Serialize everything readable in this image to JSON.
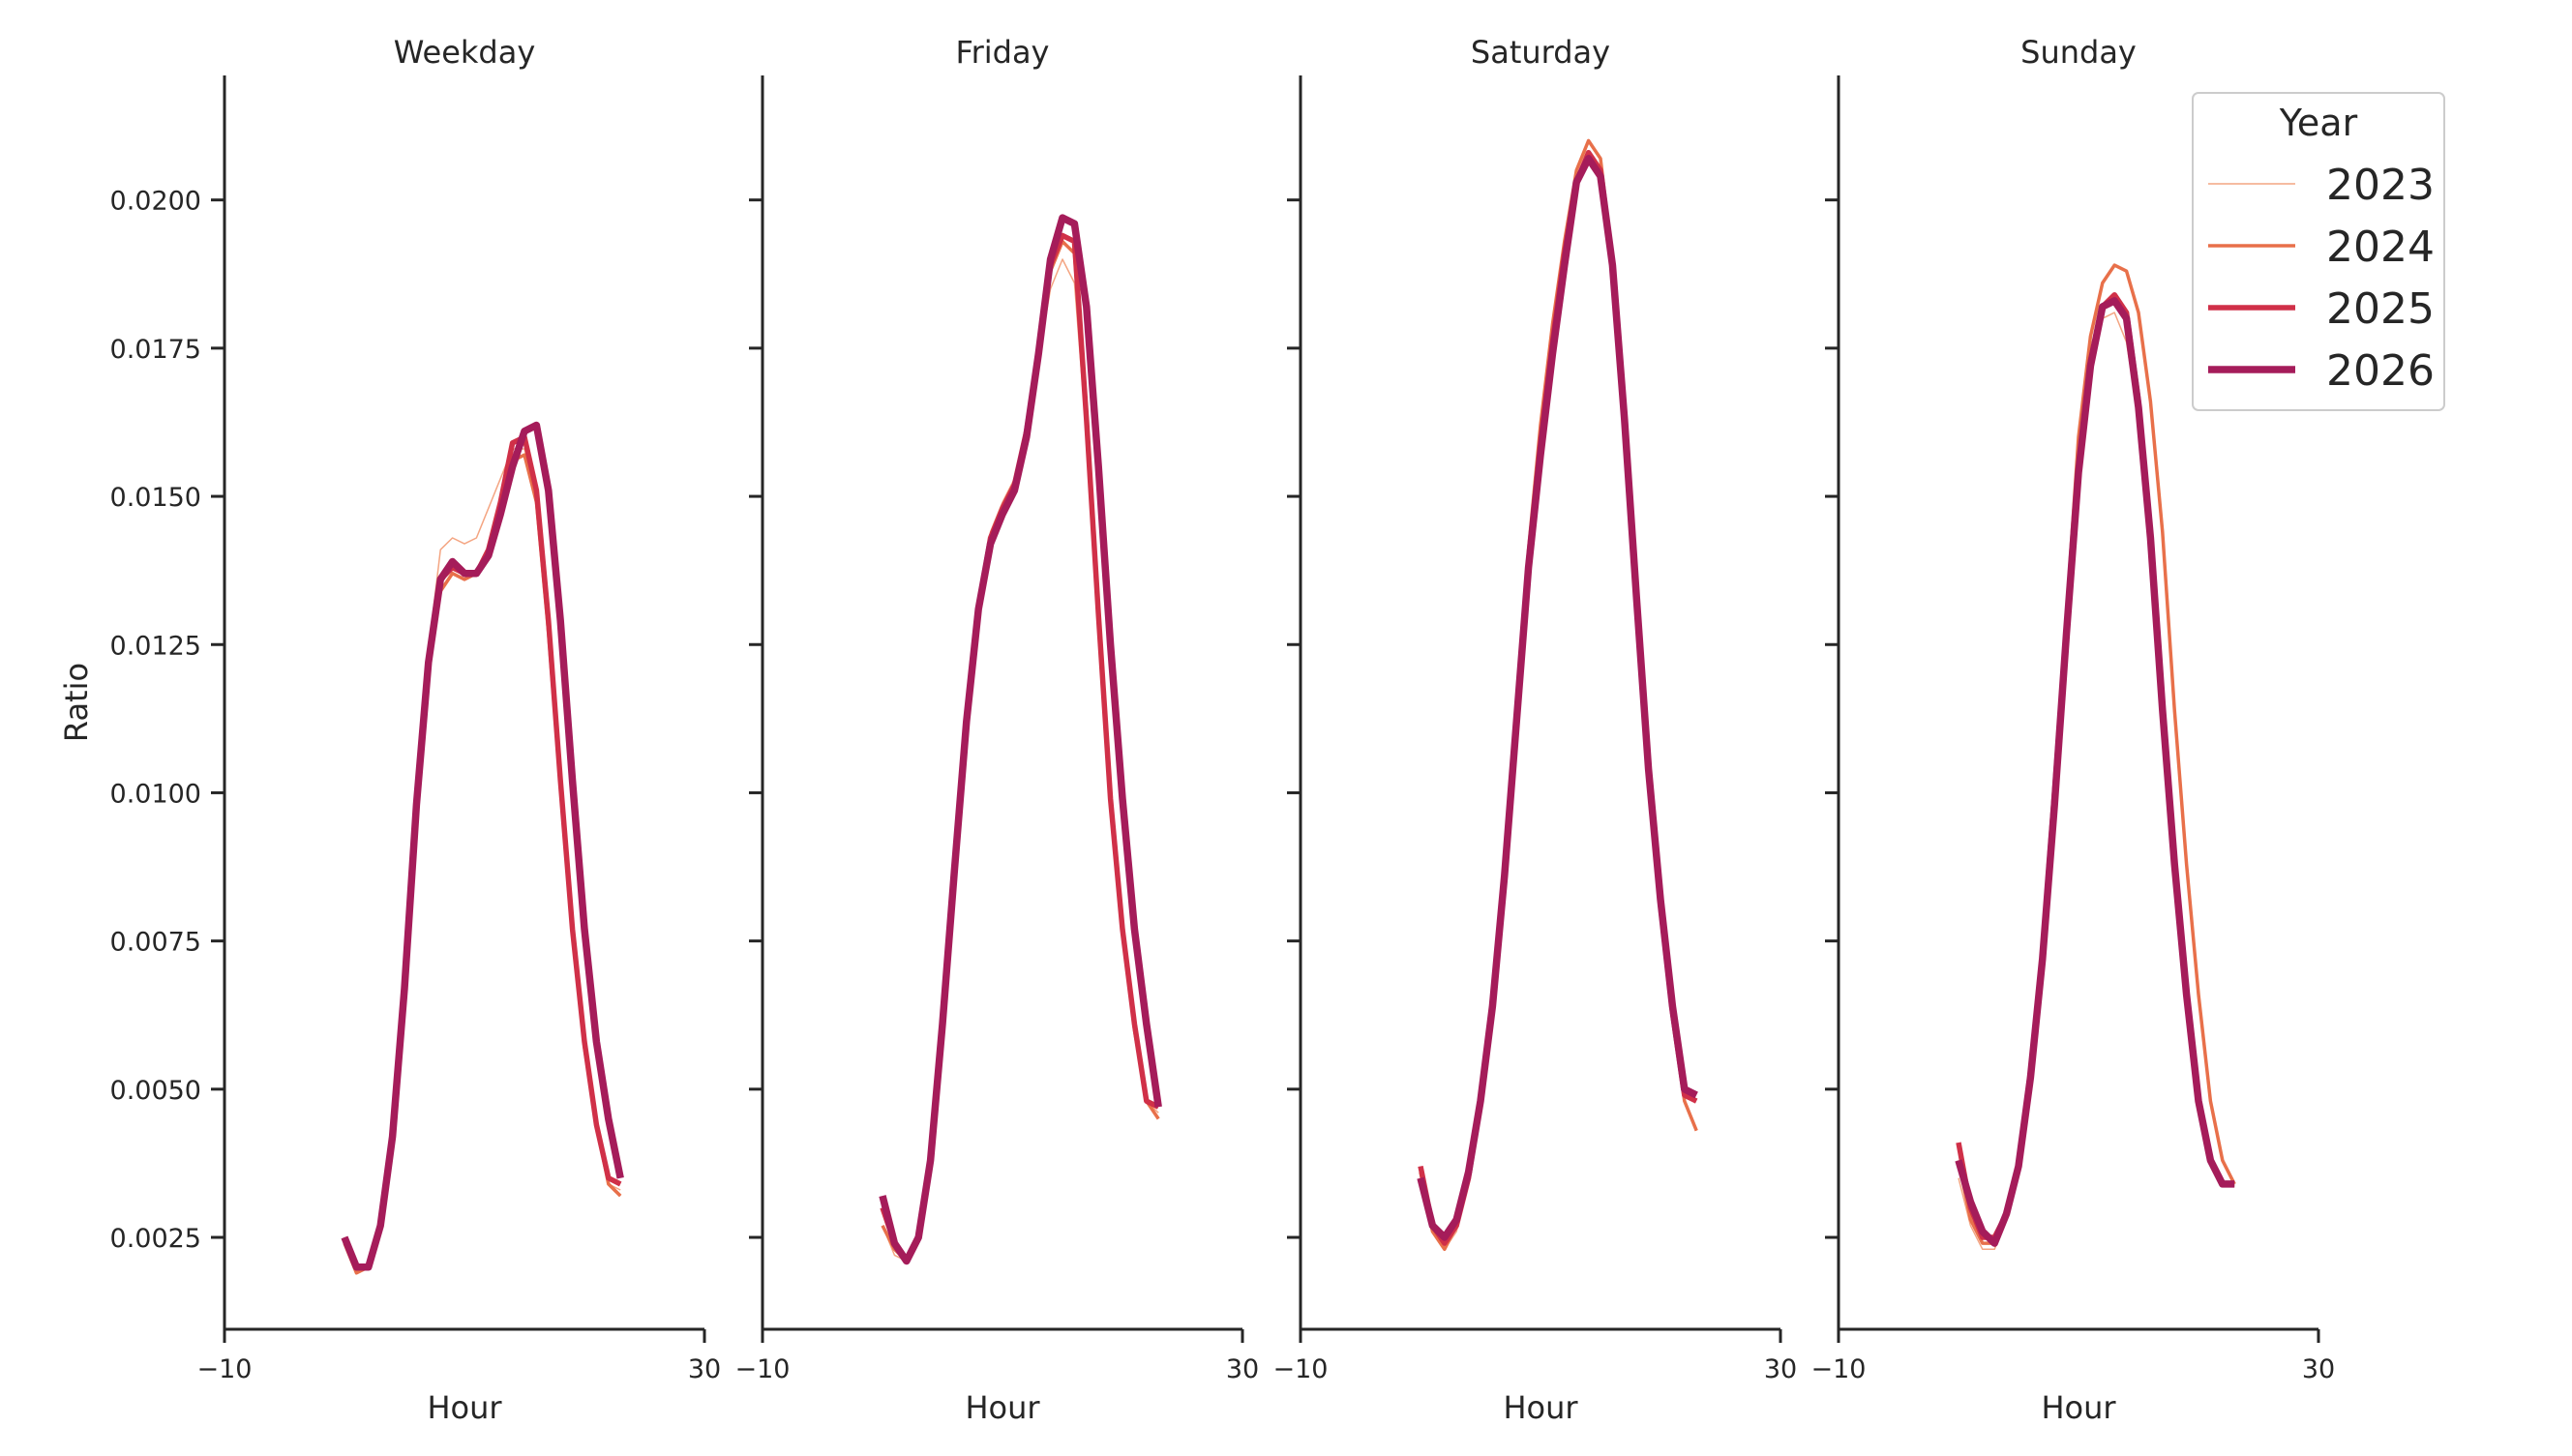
{
  "chart_data": {
    "type": "line",
    "ylabel": "Ratio",
    "xlabel": "Hour",
    "xlim": [
      -10,
      30
    ],
    "ylim": [
      0.00095,
      0.0221
    ],
    "x_ticks": [
      -10,
      30
    ],
    "x_tick_labels": [
      "−10",
      "30"
    ],
    "y_ticks": [
      0.0025,
      0.005,
      0.0075,
      0.01,
      0.0125,
      0.015,
      0.0175,
      0.02
    ],
    "y_tick_labels": [
      "0.0025",
      "0.0050",
      "0.0075",
      "0.0100",
      "0.0125",
      "0.0150",
      "0.0175",
      "0.0200"
    ],
    "grid": false,
    "legend": {
      "title": "Year",
      "placement": "upper-right",
      "entries": [
        "2023",
        "2024",
        "2025",
        "2026"
      ]
    },
    "series_style": {
      "2023": {
        "color": "#f4a582",
        "width": 1.5
      },
      "2024": {
        "color": "#e8704a",
        "width": 3.5
      },
      "2025": {
        "color": "#d03048",
        "width": 5.5
      },
      "2026": {
        "color": "#a51c5a",
        "width": 7.5
      }
    },
    "panels": [
      {
        "title": "Weekday",
        "x": [
          0,
          1,
          2,
          3,
          4,
          5,
          6,
          7,
          8,
          9,
          10,
          11,
          12,
          13,
          14,
          15,
          16,
          17,
          18,
          19,
          20,
          21,
          22,
          23
        ],
        "series": [
          {
            "name": "2023",
            "values": [
              0.0024,
              0.0019,
              0.002,
              0.0026,
              0.0041,
              0.0067,
              0.0098,
              0.0124,
              0.0141,
              0.0143,
              0.0142,
              0.0143,
              0.0148,
              0.0153,
              0.0158,
              0.0158,
              0.015,
              0.0128,
              0.0101,
              0.0077,
              0.0057,
              0.0044,
              0.0034,
              0.0033
            ]
          },
          {
            "name": "2024",
            "values": [
              0.0024,
              0.0019,
              0.002,
              0.0027,
              0.0041,
              0.0067,
              0.0098,
              0.0122,
              0.0134,
              0.0137,
              0.0136,
              0.0137,
              0.0141,
              0.0149,
              0.0156,
              0.0157,
              0.0149,
              0.0127,
              0.0101,
              0.0077,
              0.0057,
              0.0044,
              0.0034,
              0.0032
            ]
          },
          {
            "name": "2025",
            "values": [
              0.0025,
              0.002,
              0.002,
              0.0027,
              0.0042,
              0.0067,
              0.0098,
              0.0122,
              0.0136,
              0.0138,
              0.0137,
              0.0137,
              0.0141,
              0.0149,
              0.0159,
              0.016,
              0.0151,
              0.0129,
              0.0102,
              0.0077,
              0.0058,
              0.0044,
              0.0035,
              0.0034
            ]
          },
          {
            "name": "2026",
            "values": [
              0.0025,
              0.002,
              0.002,
              0.0027,
              0.0042,
              0.0067,
              0.0098,
              0.0122,
              0.0136,
              0.0139,
              0.0137,
              0.0137,
              0.014,
              0.0147,
              0.0155,
              0.0161,
              0.0162,
              0.0151,
              0.0129,
              0.0102,
              0.0077,
              0.0058,
              0.0045,
              0.0035
            ]
          }
        ]
      },
      {
        "title": "Friday",
        "x": [
          0,
          1,
          2,
          3,
          4,
          5,
          6,
          7,
          8,
          9,
          10,
          11,
          12,
          13,
          14,
          15,
          16,
          17,
          18,
          19,
          20,
          21,
          22,
          23
        ],
        "series": [
          {
            "name": "2023",
            "values": [
              0.0027,
              0.0022,
              0.0021,
              0.0025,
              0.0038,
              0.0061,
              0.0087,
              0.0112,
              0.0131,
              0.0144,
              0.0149,
              0.0153,
              0.0161,
              0.0173,
              0.0185,
              0.019,
              0.0186,
              0.016,
              0.0128,
              0.0099,
              0.0077,
              0.006,
              0.0048,
              0.0046
            ]
          },
          {
            "name": "2024",
            "values": [
              0.0027,
              0.0023,
              0.0021,
              0.0025,
              0.0038,
              0.0061,
              0.0087,
              0.0112,
              0.0131,
              0.0143,
              0.0148,
              0.0152,
              0.0161,
              0.0174,
              0.0188,
              0.0193,
              0.0191,
              0.0162,
              0.0129,
              0.0099,
              0.0077,
              0.006,
              0.0048,
              0.0045
            ]
          },
          {
            "name": "2025",
            "values": [
              0.003,
              0.0024,
              0.0021,
              0.0025,
              0.0038,
              0.0061,
              0.0087,
              0.0112,
              0.0131,
              0.0143,
              0.0148,
              0.0152,
              0.0161,
              0.0174,
              0.0189,
              0.0194,
              0.0193,
              0.0163,
              0.013,
              0.0099,
              0.0077,
              0.0061,
              0.0048,
              0.0047
            ]
          },
          {
            "name": "2026",
            "values": [
              0.0032,
              0.0024,
              0.0021,
              0.0025,
              0.0038,
              0.0061,
              0.0087,
              0.0112,
              0.0131,
              0.0142,
              0.0147,
              0.0151,
              0.016,
              0.0174,
              0.019,
              0.0197,
              0.0196,
              0.0182,
              0.0155,
              0.0125,
              0.0099,
              0.0077,
              0.0061,
              0.0047
            ]
          }
        ]
      },
      {
        "title": "Saturday",
        "x": [
          0,
          1,
          2,
          3,
          4,
          5,
          6,
          7,
          8,
          9,
          10,
          11,
          12,
          13,
          14,
          15,
          16,
          17,
          18,
          19,
          20,
          21,
          22,
          23
        ],
        "series": [
          {
            "name": "2023",
            "values": [
              0.0035,
              0.0026,
              0.0023,
              0.0026,
              0.0034,
              0.0047,
              0.0063,
              0.0086,
              0.0113,
              0.014,
              0.0161,
              0.0178,
              0.0192,
              0.0204,
              0.0208,
              0.0205,
              0.019,
              0.0164,
              0.0134,
              0.0104,
              0.008,
              0.0062,
              0.0048,
              0.0043
            ]
          },
          {
            "name": "2024",
            "values": [
              0.0036,
              0.0026,
              0.0023,
              0.0027,
              0.0035,
              0.0047,
              0.0063,
              0.0086,
              0.0113,
              0.0141,
              0.0162,
              0.0179,
              0.0193,
              0.0205,
              0.021,
              0.0207,
              0.019,
              0.0164,
              0.0134,
              0.0104,
              0.008,
              0.0062,
              0.0048,
              0.0043
            ]
          },
          {
            "name": "2025",
            "values": [
              0.0037,
              0.0027,
              0.0024,
              0.0027,
              0.0035,
              0.0048,
              0.0064,
              0.0086,
              0.0113,
              0.0139,
              0.0159,
              0.0176,
              0.0191,
              0.0203,
              0.0208,
              0.0205,
              0.0189,
              0.0163,
              0.0133,
              0.0104,
              0.0081,
              0.0063,
              0.0049,
              0.0048
            ]
          },
          {
            "name": "2026",
            "values": [
              0.0035,
              0.0027,
              0.0025,
              0.0028,
              0.0036,
              0.0048,
              0.0064,
              0.0086,
              0.0112,
              0.0138,
              0.0157,
              0.0174,
              0.0189,
              0.0203,
              0.0207,
              0.0204,
              0.0189,
              0.0163,
              0.0133,
              0.0104,
              0.0082,
              0.0064,
              0.005,
              0.0049
            ]
          }
        ]
      },
      {
        "title": "Sunday",
        "x": [
          0,
          1,
          2,
          3,
          4,
          5,
          6,
          7,
          8,
          9,
          10,
          11,
          12,
          13,
          14,
          15,
          16,
          17,
          18,
          19,
          20,
          21,
          22,
          23
        ],
        "series": [
          {
            "name": "2023",
            "values": [
              0.0035,
              0.0027,
              0.0023,
              0.0023,
              0.0028,
              0.0037,
              0.0053,
              0.0073,
              0.0099,
              0.0128,
              0.0155,
              0.0172,
              0.018,
              0.0181,
              0.0176,
              0.0163,
              0.0141,
              0.0113,
              0.0088,
              0.0066,
              0.0048,
              0.0037,
              0.0034,
              0.0034
            ]
          },
          {
            "name": "2024",
            "values": [
              0.0038,
              0.0028,
              0.0024,
              0.0024,
              0.0029,
              0.0037,
              0.0053,
              0.0073,
              0.01,
              0.013,
              0.016,
              0.0177,
              0.0186,
              0.0189,
              0.0188,
              0.0181,
              0.0166,
              0.0144,
              0.0114,
              0.0088,
              0.0066,
              0.0048,
              0.0038,
              0.0034
            ]
          },
          {
            "name": "2025",
            "values": [
              0.0041,
              0.003,
              0.0025,
              0.0025,
              0.0029,
              0.0037,
              0.0053,
              0.0073,
              0.01,
              0.0128,
              0.0155,
              0.0173,
              0.0182,
              0.0184,
              0.0181,
              0.0166,
              0.0143,
              0.0114,
              0.0088,
              0.0066,
              0.0048,
              0.0038,
              0.0034,
              0.0034
            ]
          },
          {
            "name": "2026",
            "values": [
              0.0038,
              0.0031,
              0.0026,
              0.0024,
              0.0029,
              0.0037,
              0.0052,
              0.0072,
              0.0098,
              0.0127,
              0.0154,
              0.0172,
              0.0182,
              0.0183,
              0.018,
              0.0165,
              0.0143,
              0.0114,
              0.0088,
              0.0066,
              0.0048,
              0.0038,
              0.0034,
              0.0034
            ]
          }
        ]
      }
    ]
  }
}
